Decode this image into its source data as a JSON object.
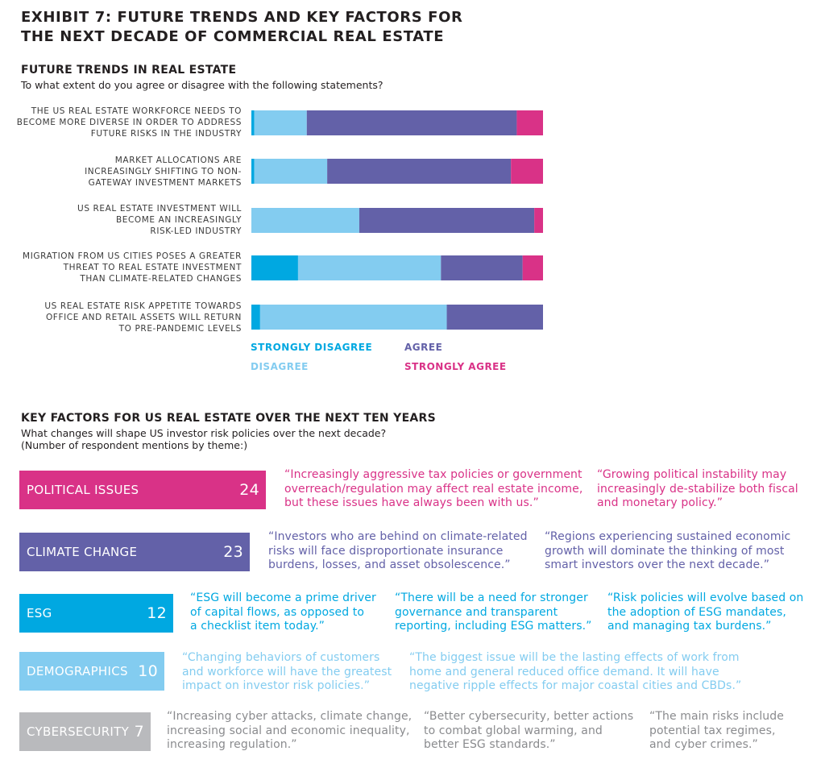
{
  "title_line1": "EXHIBIT 7: FUTURE TRENDS AND KEY FACTORS FOR",
  "title_line2": "THE NEXT DECADE OF COMMERCIAL REAL ESTATE",
  "trends": {
    "title": "FUTURE TRENDS IN REAL ESTATE",
    "subtitle": "To what extent do you agree or disagree with the following statements?",
    "statements": [
      [
        "THE US REAL ESTATE WORKFORCE NEEDS TO",
        "BECOME MORE DIVERSE IN ORDER TO ADDRESS",
        "FUTURE RISKS IN THE INDUSTRY"
      ],
      [
        "MARKET ALLOCATIONS ARE",
        "INCREASINGLY SHIFTING TO NON-",
        "GATEWAY INVESTMENT MARKETS"
      ],
      [
        "US REAL ESTATE INVESTMENT WILL",
        "BECOME AN INCREASINGLY",
        "RISK-LED INDUSTRY"
      ],
      [
        "MIGRATION FROM US CITIES POSES A GREATER",
        "THREAT TO REAL ESTATE INVESTMENT",
        "THAN CLIMATE-RELATED CHANGES"
      ],
      [
        "US REAL ESTATE RISK APPETITE TOWARDS",
        "OFFICE AND RETAIL ASSETS WILL RETURN",
        "TO PRE-PANDEMIC LEVELS"
      ]
    ]
  },
  "chart_data": {
    "type": "bar",
    "orientation": "horizontal",
    "stacked": "100%",
    "categories": [
      "THE US REAL ESTATE WORKFORCE NEEDS TO BECOME MORE DIVERSE IN ORDER TO ADDRESS FUTURE RISKS IN THE INDUSTRY",
      "MARKET ALLOCATIONS ARE INCREASINGLY SHIFTING TO NON-GATEWAY INVESTMENT MARKETS",
      "US REAL ESTATE INVESTMENT WILL BECOME AN INCREASINGLY RISK-LED INDUSTRY",
      "MIGRATION FROM US CITIES POSES A GREATER THREAT TO REAL ESTATE INVESTMENT THAN CLIMATE-RELATED CHANGES",
      "US REAL ESTATE RISK APPETITE TOWARDS OFFICE AND RETAIL ASSETS WILL RETURN TO PRE-PANDEMIC LEVELS"
    ],
    "series": [
      {
        "name": "STRONGLY DISAGREE",
        "color": "#00a8e1",
        "values": [
          1,
          1,
          0,
          16,
          3
        ]
      },
      {
        "name": "DISAGREE",
        "color": "#83ccf0",
        "values": [
          18,
          25,
          37,
          49,
          64
        ]
      },
      {
        "name": "AGREE",
        "color": "#6361a8",
        "values": [
          72,
          63,
          60,
          28,
          33
        ]
      },
      {
        "name": "STRONGLY AGREE",
        "color": "#d93287",
        "values": [
          9,
          11,
          3,
          7,
          0
        ]
      }
    ],
    "legend_position": "bottom",
    "grid": false
  },
  "key_factors": {
    "title": "KEY FACTORS FOR US REAL ESTATE OVER THE NEXT TEN YEARS",
    "subtitle_line1": "What changes will shape US investor risk policies over the next decade?",
    "subtitle_line2": "(Number of respondent mentions by theme:)",
    "rows": [
      {
        "label": "POLITICAL ISSUES",
        "count": "24",
        "color": "#d93287",
        "quotes": [
          [
            "“Increasingly aggressive tax policies or government",
            "overreach/regulation may affect real estate income,",
            "but these issues have always been with us.”"
          ],
          [
            "“Growing political instability may",
            "increasingly de-stabilize both fiscal",
            "and monetary policy.”"
          ]
        ]
      },
      {
        "label": "CLIMATE CHANGE",
        "count": "23",
        "color": "#6361a8",
        "quotes": [
          [
            "“Investors who are behind on climate-related",
            "risks will face disproportionate insurance",
            "burdens, losses, and asset obsolescence.”"
          ],
          [
            "“Regions experiencing sustained economic",
            "growth will dominate the thinking of most",
            "smart investors over the next decade.”"
          ]
        ]
      },
      {
        "label": "ESG",
        "count": "12",
        "color": "#00a8e1",
        "quotes": [
          [
            "“ESG will become a prime driver",
            "of capital flows, as opposed to",
            "a checklist item today.”"
          ],
          [
            "“There will be a need for stronger",
            "governance and transparent",
            "reporting, including ESG matters.”"
          ],
          [
            "“Risk policies will evolve based on",
            "the adoption of ESG mandates,",
            "and managing tax burdens.”"
          ]
        ]
      },
      {
        "label": "DEMOGRAPHICS",
        "count": "10",
        "color": "#83ccf0",
        "quotes": [
          [
            "“Changing behaviors of customers",
            "and workforce will have the greatest",
            "impact on investor risk policies.”"
          ],
          [
            "“The biggest issue will be the lasting effects of work from",
            "home and general reduced office demand. It will have",
            "negative ripple effects for major coastal cities and CBDs.”"
          ]
        ]
      },
      {
        "label": "CYBERSECURITY",
        "count": "7",
        "color": "#b9babd",
        "quotes": [
          [
            "“Increasing cyber attacks, climate change,",
            "increasing social and economic inequality,",
            "increasing regulation.”"
          ],
          [
            "“Better cybersecurity, better actions",
            "to combat global warming, and",
            "better ESG standards.”"
          ],
          [
            "“The main risks include",
            "potential tax regimes,",
            "and cyber crimes.”"
          ]
        ]
      }
    ]
  }
}
